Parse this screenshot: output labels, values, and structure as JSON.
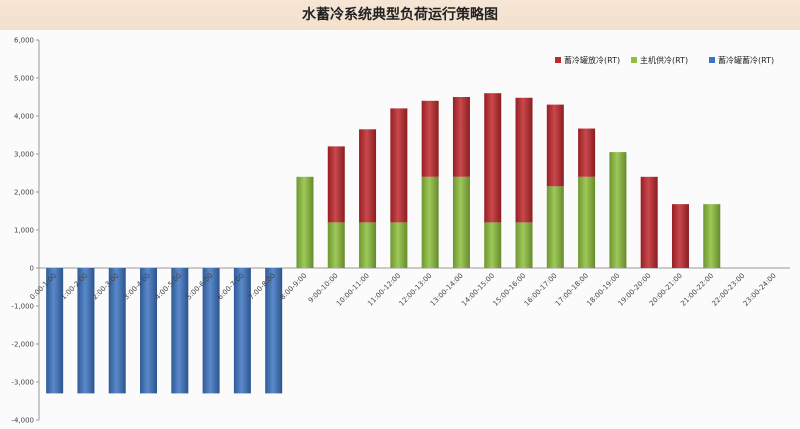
{
  "chart_data": {
    "type": "bar",
    "stacked": true,
    "title": "水蓄冷系统典型负荷运行策略图",
    "categories": [
      "0:00-1:00",
      "1:00-2:00",
      "2:00-3:00",
      "3:00-4:00",
      "4:00-5:00",
      "5:00-6:00",
      "6:00-7:00",
      "7:00-8:00",
      "8:00-9:00",
      "9:00-10:00",
      "10:00-11:00",
      "11:00-12:00",
      "12:00-13:00",
      "13:00-14:00",
      "14:00-15:00",
      "15:00-16:00",
      "16:00-17:00",
      "17:00-18:00",
      "18:00-19:00",
      "19:00-20:00",
      "20:00-21:00",
      "21:00-22:00",
      "22:00-23:00",
      "23:00-24:00"
    ],
    "series": [
      {
        "name": "主机供冷(RT)",
        "color": "#8dc03c",
        "values": [
          0,
          0,
          0,
          0,
          0,
          0,
          0,
          0,
          2400,
          1200,
          1200,
          1200,
          2400,
          2400,
          1200,
          1200,
          2150,
          2400,
          3050,
          0,
          0,
          1680,
          0,
          0
        ]
      },
      {
        "name": "蓄冷罐放冷(RT)",
        "color": "#c0282d",
        "values": [
          0,
          0,
          0,
          0,
          0,
          0,
          0,
          0,
          0,
          2000,
          2450,
          3000,
          2000,
          2100,
          3400,
          3280,
          2150,
          1270,
          0,
          2400,
          1680,
          0,
          0,
          0
        ]
      },
      {
        "name": "蓄冷罐蓄冷(RT)",
        "color": "#3d74c2",
        "values": [
          -3300,
          -3300,
          -3300,
          -3300,
          -3300,
          -3300,
          -3300,
          -3300,
          0,
          0,
          0,
          0,
          0,
          0,
          0,
          0,
          0,
          0,
          0,
          0,
          0,
          0,
          0,
          0
        ]
      }
    ],
    "legend_order": [
      1,
      0,
      2
    ],
    "legend_position": "top-right",
    "ylim": [
      -4000,
      6000
    ],
    "yticks": [
      "-4,000",
      "-3,000",
      "-2,000",
      "-1,000",
      "0",
      "1,000",
      "2,000",
      "3,000",
      "4,000",
      "5,000",
      "6,000"
    ],
    "grid": false
  }
}
